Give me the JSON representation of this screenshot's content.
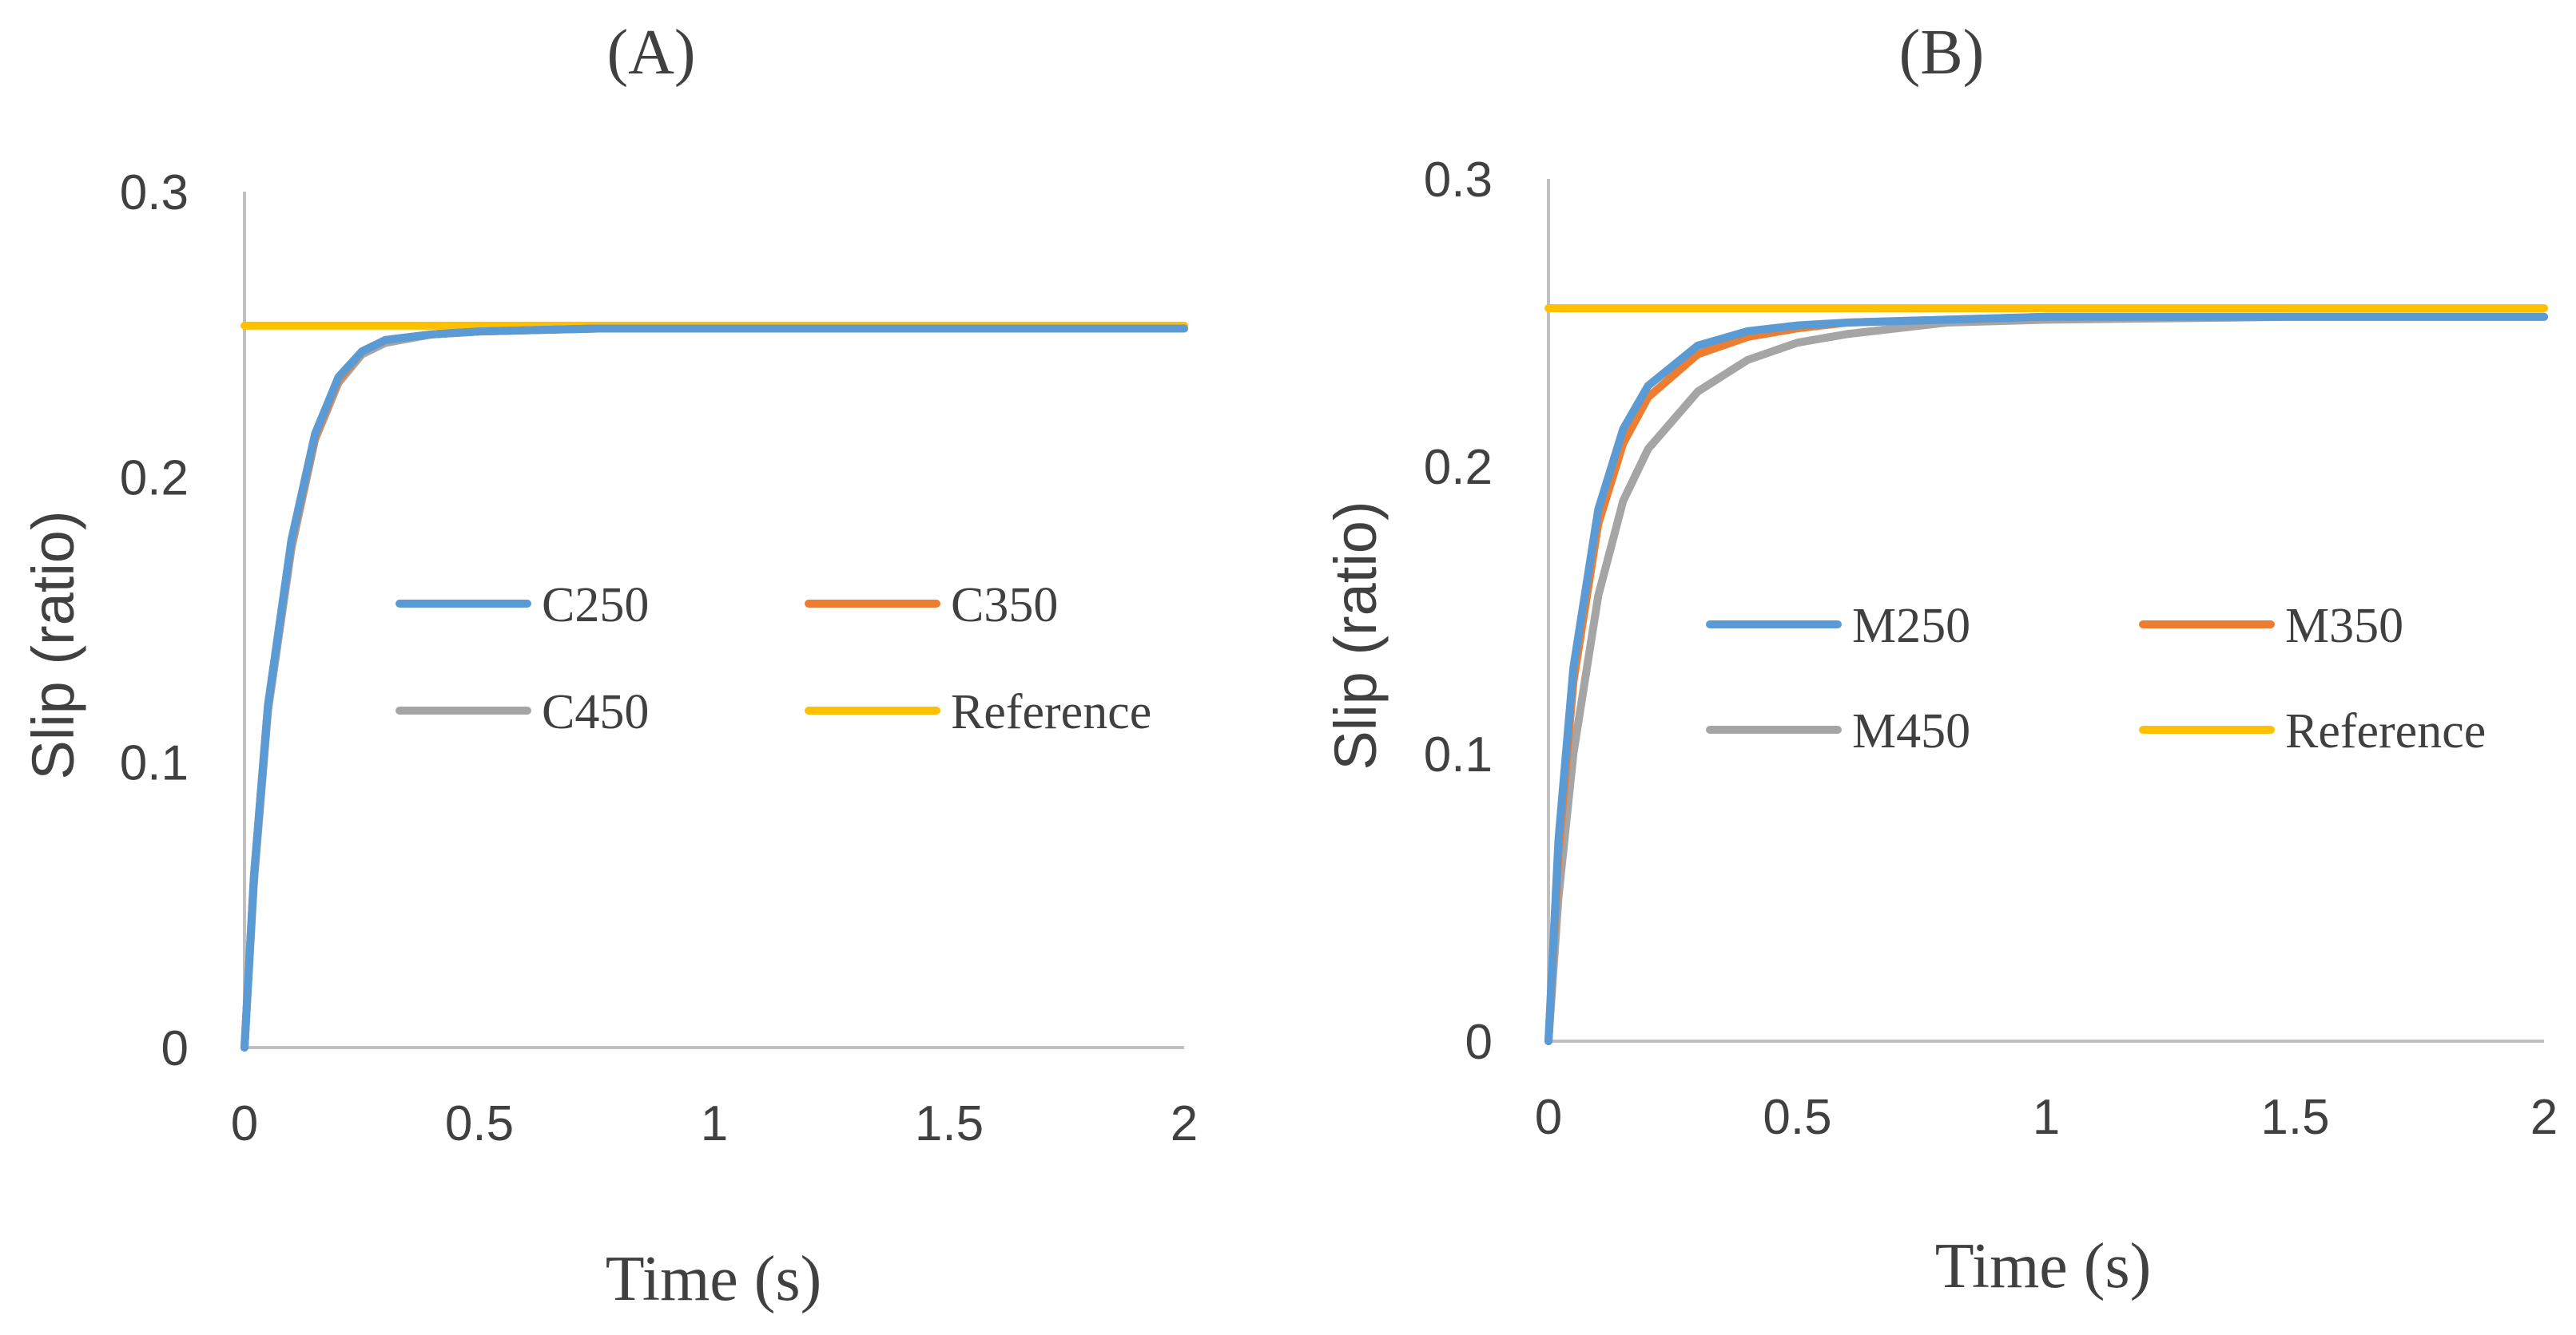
{
  "chart_data": [
    {
      "type": "line",
      "title": "(A)",
      "xlabel": "Time (s)",
      "ylabel": "Slip (ratio)",
      "xlim": [
        0,
        2
      ],
      "ylim": [
        0,
        0.3
      ],
      "x_ticks": [
        "0",
        "0.5",
        "1",
        "1.5",
        "2"
      ],
      "y_ticks": [
        "0",
        "0.1",
        "0.2",
        "0.3"
      ],
      "grid": false,
      "legend_position": "center",
      "series": [
        {
          "name": "C250",
          "color": "#5B9BD5",
          "x": [
            0,
            0.02,
            0.05,
            0.1,
            0.15,
            0.2,
            0.25,
            0.3,
            0.4,
            0.5,
            0.75,
            1,
            1.5,
            2
          ],
          "y": [
            0,
            0.06,
            0.12,
            0.178,
            0.215,
            0.235,
            0.244,
            0.248,
            0.25,
            0.251,
            0.252,
            0.252,
            0.252,
            0.252
          ]
        },
        {
          "name": "C350",
          "color": "#ED7D31",
          "x": [
            0,
            0.02,
            0.05,
            0.1,
            0.15,
            0.2,
            0.25,
            0.3,
            0.4,
            0.5,
            0.75,
            1,
            1.5,
            2
          ],
          "y": [
            0,
            0.06,
            0.12,
            0.177,
            0.214,
            0.234,
            0.244,
            0.248,
            0.25,
            0.251,
            0.252,
            0.252,
            0.252,
            0.252
          ]
        },
        {
          "name": "C450",
          "color": "#A5A5A5",
          "x": [
            0,
            0.02,
            0.05,
            0.1,
            0.15,
            0.2,
            0.25,
            0.3,
            0.4,
            0.5,
            0.75,
            1,
            1.5,
            2
          ],
          "y": [
            0,
            0.058,
            0.118,
            0.175,
            0.213,
            0.233,
            0.243,
            0.247,
            0.25,
            0.251,
            0.252,
            0.252,
            0.252,
            0.252
          ]
        },
        {
          "name": "Reference",
          "color": "#FFC000",
          "x": [
            0,
            2
          ],
          "y": [
            0.253,
            0.253
          ]
        }
      ]
    },
    {
      "type": "line",
      "title": "(B)",
      "xlabel": "Time (s)",
      "ylabel": "Slip (ratio)",
      "xlim": [
        0,
        2
      ],
      "ylim": [
        0,
        0.3
      ],
      "x_ticks": [
        "0",
        "0.5",
        "1",
        "1.5",
        "2"
      ],
      "y_ticks": [
        "0",
        "0.1",
        "0.2",
        "0.3"
      ],
      "grid": false,
      "legend_position": "center",
      "series": [
        {
          "name": "M250",
          "color": "#5B9BD5",
          "x": [
            0,
            0.02,
            0.05,
            0.1,
            0.15,
            0.2,
            0.3,
            0.4,
            0.5,
            0.6,
            0.8,
            1,
            1.5,
            2
          ],
          "y": [
            0,
            0.07,
            0.13,
            0.185,
            0.213,
            0.228,
            0.242,
            0.247,
            0.249,
            0.25,
            0.251,
            0.252,
            0.252,
            0.252
          ]
        },
        {
          "name": "M350",
          "color": "#ED7D31",
          "x": [
            0,
            0.02,
            0.05,
            0.1,
            0.15,
            0.2,
            0.3,
            0.4,
            0.5,
            0.6,
            0.8,
            1,
            1.5,
            2
          ],
          "y": [
            0,
            0.065,
            0.125,
            0.18,
            0.208,
            0.224,
            0.239,
            0.245,
            0.248,
            0.25,
            0.251,
            0.252,
            0.252,
            0.252
          ]
        },
        {
          "name": "M450",
          "color": "#A5A5A5",
          "x": [
            0,
            0.02,
            0.05,
            0.1,
            0.15,
            0.2,
            0.3,
            0.4,
            0.5,
            0.6,
            0.8,
            1,
            1.5,
            2
          ],
          "y": [
            0,
            0.05,
            0.1,
            0.155,
            0.188,
            0.206,
            0.226,
            0.237,
            0.243,
            0.246,
            0.25,
            0.251,
            0.252,
            0.252
          ]
        },
        {
          "name": "Reference",
          "color": "#FFC000",
          "x": [
            0,
            2
          ],
          "y": [
            0.255,
            0.255
          ]
        }
      ]
    }
  ]
}
